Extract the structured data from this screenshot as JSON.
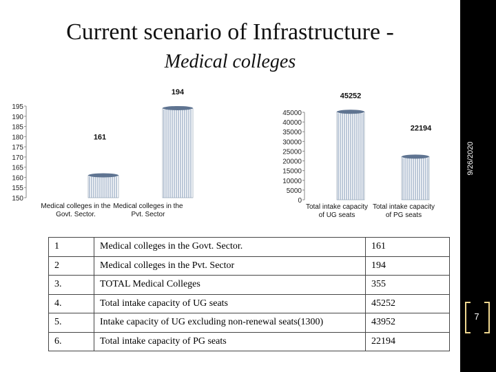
{
  "slide": {
    "title_line1": "Current scenario of Infrastructure -",
    "title_line2": "Medical colleges",
    "date": "9/26/2020",
    "page_number": "7"
  },
  "chart_data": [
    {
      "type": "bar",
      "categories": [
        "Medical colleges in the Govt. Sector.",
        "Medical colleges in the Pvt. Sector"
      ],
      "values": [
        161,
        194
      ],
      "data_labels": [
        "161",
        "194"
      ],
      "ylim": [
        150,
        195
      ],
      "yticks": [
        "150",
        "155",
        "160",
        "165",
        "170",
        "175",
        "180",
        "185",
        "190",
        "195"
      ],
      "bar_color": "#8fa4bd"
    },
    {
      "type": "bar",
      "categories": [
        "Total intake capacity of UG seats",
        "Total intake capacity of PG seats"
      ],
      "values": [
        45252,
        22194
      ],
      "data_labels": [
        "45252",
        "22194"
      ],
      "ylim": [
        0,
        45000
      ],
      "yticks": [
        "0",
        "5000",
        "10000",
        "15000",
        "20000",
        "25000",
        "30000",
        "35000",
        "40000",
        "45000"
      ],
      "bar_color": "#8fa4bd"
    }
  ],
  "table": {
    "rows": [
      {
        "no": "1",
        "item": "Medical colleges in the Govt. Sector.",
        "value": "161"
      },
      {
        "no": "2",
        "item": "Medical colleges in the Pvt. Sector",
        "value": "194"
      },
      {
        "no": "3.",
        "item": "TOTAL Medical Colleges",
        "value": "355"
      },
      {
        "no": "4.",
        "item": "Total intake capacity of UG seats",
        "value": "45252"
      },
      {
        "no": "5.",
        "item": "Intake capacity of UG excluding non-renewal seats(1300)",
        "value": "43952"
      },
      {
        "no": "6.",
        "item": "Total intake capacity of PG seats",
        "value": "22194"
      }
    ]
  }
}
